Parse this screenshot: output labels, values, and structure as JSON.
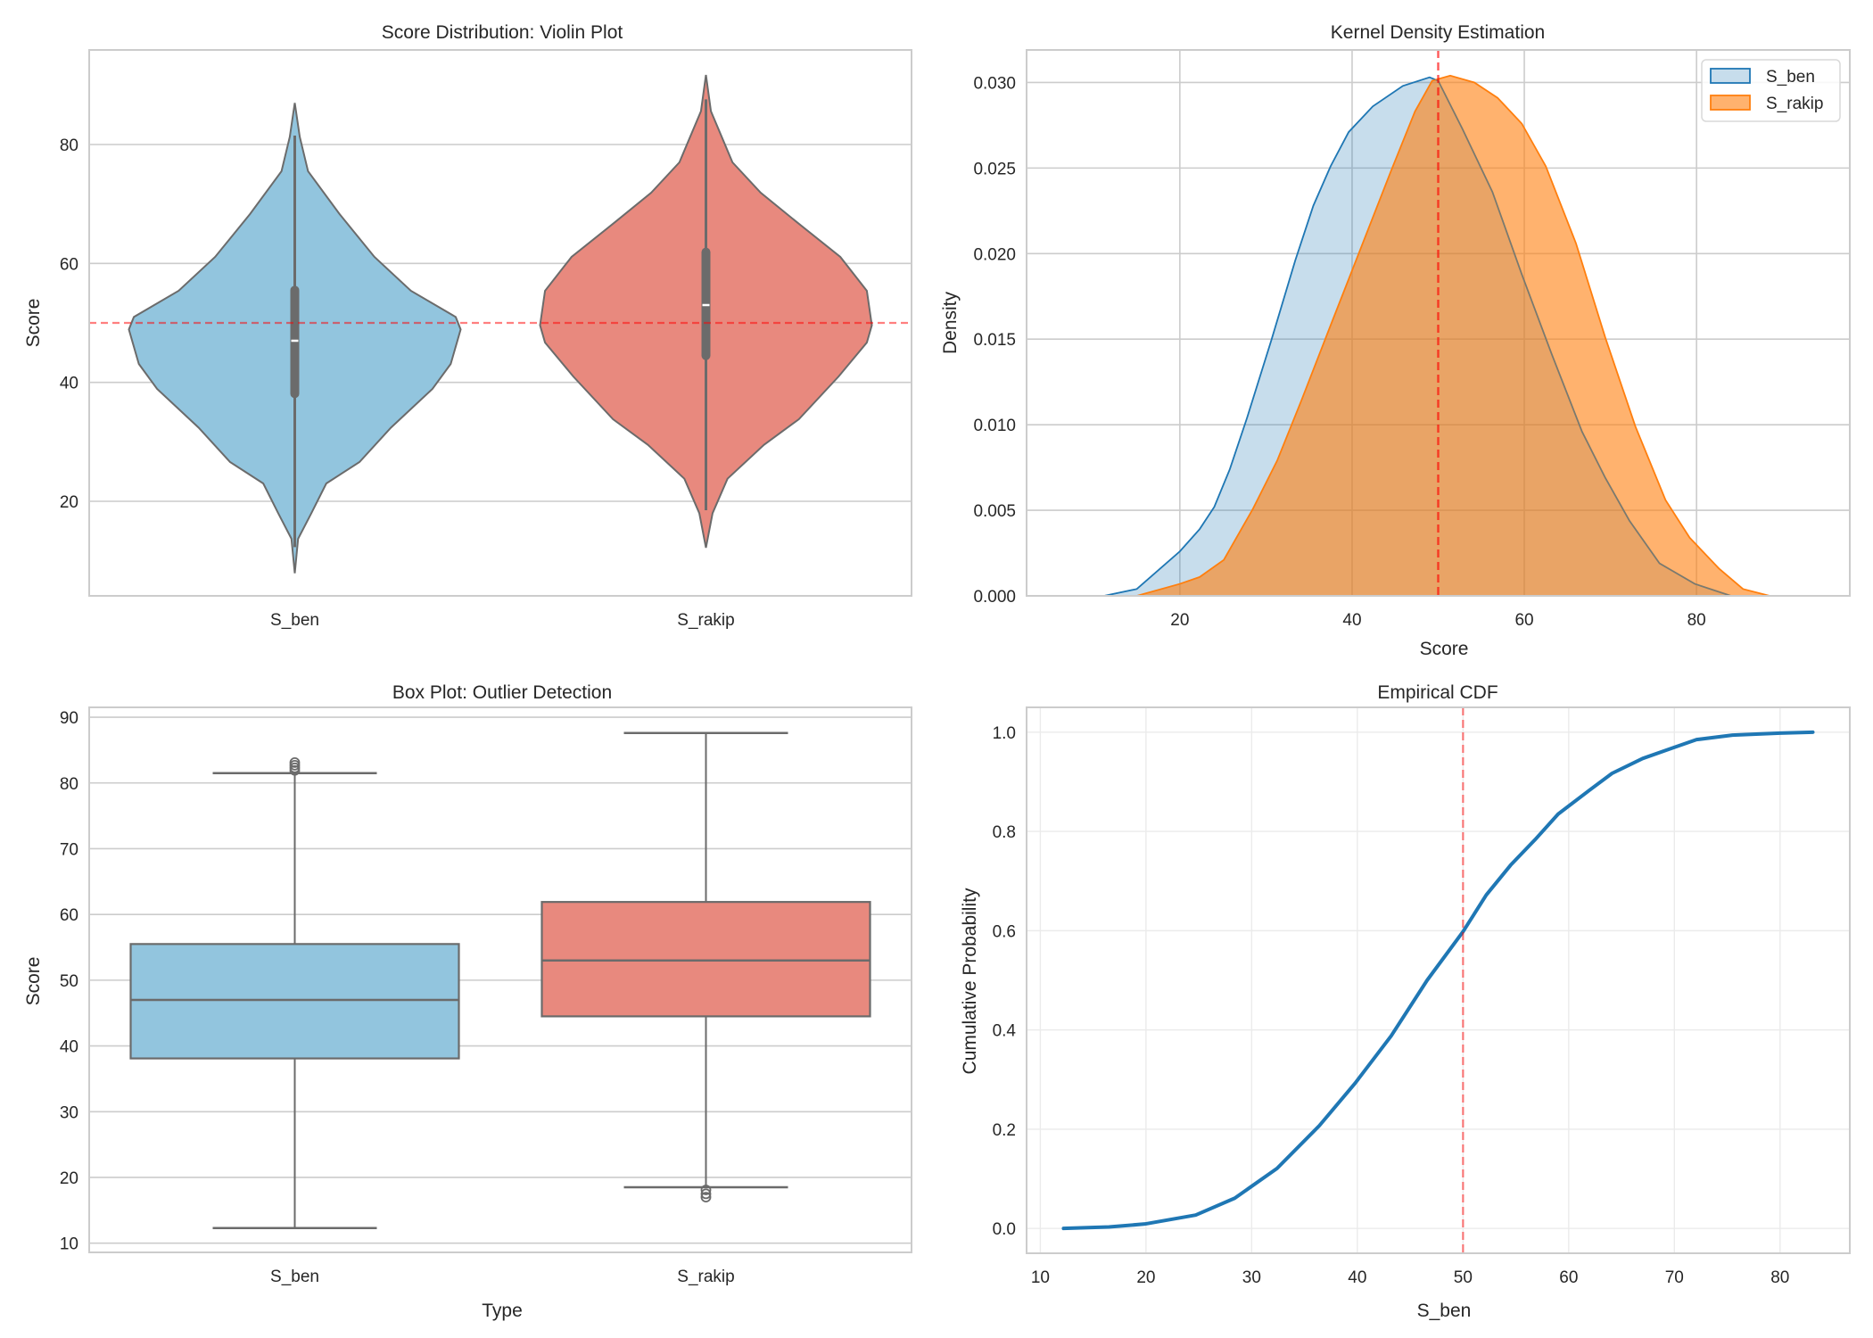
{
  "figure": {
    "background": "#ffffff",
    "reference_line_color": "#ff0000",
    "reference_value": 50
  },
  "chart_data": [
    {
      "id": "violin",
      "type": "violin",
      "title": "Score Distribution: Violin Plot",
      "xlabel": "",
      "ylabel": "Score",
      "categories": [
        "S_ben",
        "S_rakip"
      ],
      "colors": [
        "#92c5de",
        "#e8897e"
      ],
      "ylim": [
        4.1,
        95.9
      ],
      "yticks": [
        20,
        40,
        60,
        80
      ],
      "grid": true,
      "reference_line": {
        "orientation": "horizontal",
        "value": 50,
        "style": "dashed",
        "color": "#ff0000",
        "alpha": 0.5
      },
      "series": [
        {
          "name": "S_ben",
          "profile": [
            [
              87.0,
              0
            ],
            [
              81.3,
              0.03
            ],
            [
              75.5,
              0.08
            ],
            [
              68.3,
              0.27
            ],
            [
              61.1,
              0.48
            ],
            [
              55.4,
              0.7
            ],
            [
              51.0,
              0.97
            ],
            [
              48.9,
              1.0
            ],
            [
              43.1,
              0.94
            ],
            [
              38.9,
              0.83
            ],
            [
              32.4,
              0.58
            ],
            [
              26.6,
              0.39
            ],
            [
              23.0,
              0.19
            ],
            [
              18.0,
              0.1
            ],
            [
              13.7,
              0.02
            ],
            [
              7.9,
              0
            ]
          ],
          "q1": 38.1,
          "median": 47.0,
          "q3": 55.5,
          "whisker_low": 12.3,
          "whisker_high": 81.5
        },
        {
          "name": "S_rakip",
          "profile": [
            [
              91.7,
              0
            ],
            [
              85.6,
              0.03
            ],
            [
              77.0,
              0.16
            ],
            [
              71.9,
              0.33
            ],
            [
              66.9,
              0.55
            ],
            [
              61.1,
              0.81
            ],
            [
              55.4,
              0.97
            ],
            [
              49.6,
              1.0
            ],
            [
              46.7,
              0.97
            ],
            [
              41.0,
              0.8
            ],
            [
              33.8,
              0.56
            ],
            [
              29.5,
              0.35
            ],
            [
              23.8,
              0.13
            ],
            [
              18.0,
              0.04
            ],
            [
              12.2,
              0
            ]
          ],
          "q1": 44.5,
          "median": 53.0,
          "q3": 61.9,
          "whisker_low": 18.5,
          "whisker_high": 87.6
        }
      ]
    },
    {
      "id": "kde",
      "type": "area",
      "title": "Kernel Density Estimation",
      "xlabel": "Score",
      "ylabel": "Density",
      "xlim": [
        2.2,
        97.8
      ],
      "ylim": [
        0,
        0.0319
      ],
      "xticks": [
        20,
        40,
        60,
        80
      ],
      "yticks": [
        0.0,
        0.005,
        0.01,
        0.015,
        0.02,
        0.025,
        0.03
      ],
      "ytick_labels": [
        "0.000",
        "0.005",
        "0.010",
        "0.015",
        "0.020",
        "0.025",
        "0.030"
      ],
      "grid": true,
      "legend": {
        "position": "top-right",
        "entries": [
          "S_ben",
          "S_rakip"
        ]
      },
      "reference_line": {
        "orientation": "vertical",
        "value": 50,
        "style": "dashed",
        "color": "#ff0000",
        "alpha": 0.5
      },
      "series": [
        {
          "name": "S_ben",
          "line_color": "#1f77b4",
          "fill_color": "#1f77b4",
          "fill_alpha": 0.25,
          "points": [
            [
              11.2,
              0
            ],
            [
              15.0,
              0.0004
            ],
            [
              20.0,
              0.0026
            ],
            [
              22.3,
              0.0039
            ],
            [
              24.0,
              0.0052
            ],
            [
              25.8,
              0.0074
            ],
            [
              27.8,
              0.0104
            ],
            [
              30.6,
              0.0149
            ],
            [
              33.4,
              0.0196
            ],
            [
              35.5,
              0.0228
            ],
            [
              37.5,
              0.0251
            ],
            [
              39.6,
              0.0271
            ],
            [
              42.4,
              0.0286
            ],
            [
              45.9,
              0.0298
            ],
            [
              49.0,
              0.0303
            ],
            [
              50.0,
              0.0301
            ],
            [
              52.8,
              0.0273
            ],
            [
              56.3,
              0.0236
            ],
            [
              59.7,
              0.0188
            ],
            [
              63.2,
              0.0141
            ],
            [
              66.7,
              0.0096
            ],
            [
              69.4,
              0.0069
            ],
            [
              72.2,
              0.0044
            ],
            [
              75.7,
              0.0019
            ],
            [
              79.8,
              0.0007
            ],
            [
              84.0,
              0
            ]
          ]
        },
        {
          "name": "S_rakip",
          "line_color": "#ff7f0e",
          "fill_color": "#ff7f0e",
          "fill_alpha": 0.6,
          "points": [
            [
              15.0,
              0
            ],
            [
              20.0,
              0.0007
            ],
            [
              22.3,
              0.0011
            ],
            [
              25.1,
              0.0021
            ],
            [
              28.5,
              0.0051
            ],
            [
              31.3,
              0.0079
            ],
            [
              34.1,
              0.0114
            ],
            [
              37.5,
              0.0158
            ],
            [
              41.0,
              0.0203
            ],
            [
              44.5,
              0.0248
            ],
            [
              47.3,
              0.0283
            ],
            [
              49.3,
              0.0301
            ],
            [
              51.4,
              0.0304
            ],
            [
              54.2,
              0.03
            ],
            [
              56.9,
              0.0291
            ],
            [
              59.7,
              0.0276
            ],
            [
              62.5,
              0.0251
            ],
            [
              66.0,
              0.0206
            ],
            [
              69.4,
              0.0151
            ],
            [
              72.9,
              0.0099
            ],
            [
              76.4,
              0.0056
            ],
            [
              79.2,
              0.0034
            ],
            [
              82.6,
              0.0016
            ],
            [
              85.4,
              0.0004
            ],
            [
              88.5,
              0
            ]
          ]
        }
      ]
    },
    {
      "id": "box",
      "type": "box",
      "title": "Box Plot: Outlier Detection",
      "xlabel": "Type",
      "ylabel": "Score",
      "categories": [
        "S_ben",
        "S_rakip"
      ],
      "colors": [
        "#92c5de",
        "#e8897e"
      ],
      "ylim": [
        8.6,
        91.5
      ],
      "yticks": [
        10,
        20,
        30,
        40,
        50,
        60,
        70,
        80,
        90
      ],
      "grid": true,
      "series": [
        {
          "name": "S_ben",
          "whisker_low": 12.3,
          "q1": 38.1,
          "median": 47.0,
          "q3": 55.5,
          "whisker_high": 81.5,
          "outliers": [
            81.9,
            82.3,
            82.7,
            83.1
          ]
        },
        {
          "name": "S_rakip",
          "whisker_low": 18.5,
          "q1": 44.5,
          "median": 53.0,
          "q3": 61.9,
          "whisker_high": 87.6,
          "outliers": [
            18.1,
            17.5,
            17.0
          ]
        }
      ]
    },
    {
      "id": "ecdf",
      "type": "line",
      "title": "Empirical CDF",
      "xlabel": "S_ben",
      "ylabel": "Cumulative Probability",
      "xlim": [
        8.7,
        86.6
      ],
      "ylim": [
        -0.05,
        1.05
      ],
      "xticks": [
        10,
        20,
        30,
        40,
        50,
        60,
        70,
        80
      ],
      "yticks": [
        0.0,
        0.2,
        0.4,
        0.6,
        0.8,
        1.0
      ],
      "ytick_labels": [
        "0.0",
        "0.2",
        "0.4",
        "0.6",
        "0.8",
        "1.0"
      ],
      "grid": true,
      "reference_line": {
        "orientation": "vertical",
        "value": 50,
        "style": "dashed",
        "color": "#ff0000",
        "alpha": 0.5
      },
      "series": [
        {
          "name": "S_ben",
          "color": "#1f77b4",
          "points": [
            [
              12.2,
              0
            ],
            [
              16.5,
              0.003
            ],
            [
              19.9,
              0.009
            ],
            [
              24.7,
              0.027
            ],
            [
              28.4,
              0.061
            ],
            [
              32.4,
              0.121
            ],
            [
              36.4,
              0.207
            ],
            [
              39.8,
              0.293
            ],
            [
              43.2,
              0.388
            ],
            [
              46.6,
              0.5
            ],
            [
              50.0,
              0.598
            ],
            [
              52.2,
              0.672
            ],
            [
              54.5,
              0.732
            ],
            [
              56.8,
              0.783
            ],
            [
              59.0,
              0.835
            ],
            [
              61.9,
              0.882
            ],
            [
              64.1,
              0.917
            ],
            [
              67.0,
              0.947
            ],
            [
              69.8,
              0.968
            ],
            [
              72.1,
              0.985
            ],
            [
              75.5,
              0.994
            ],
            [
              80.0,
              0.998
            ],
            [
              83.1,
              1.0
            ]
          ]
        }
      ]
    }
  ]
}
